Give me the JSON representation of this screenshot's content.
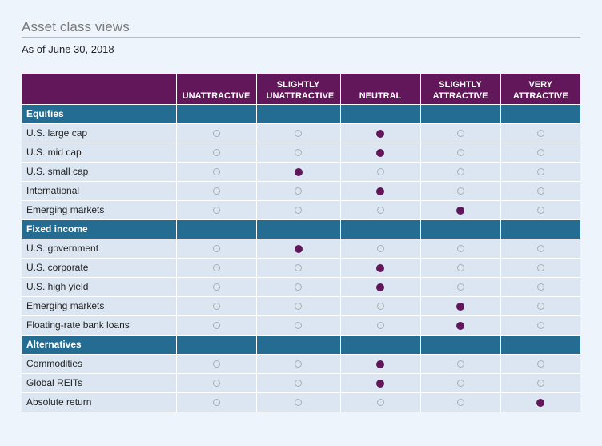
{
  "title": "Asset class views",
  "subtitle": "As of June 30, 2018",
  "columns": [
    "UNATTRACTIVE",
    "SLIGHTLY UNATTRACTIVE",
    "NEUTRAL",
    "SLIGHTLY ATTRACTIVE",
    "VERY ATTRACTIVE"
  ],
  "colors": {
    "header": "#62175a",
    "section": "#246c92",
    "row": "#dbe6f2",
    "dot_on": "#62175a"
  },
  "sections": [
    {
      "name": "Equities",
      "rows": [
        {
          "name": "U.S. large cap",
          "view": 2
        },
        {
          "name": "U.S. mid cap",
          "view": 2
        },
        {
          "name": "U.S. small cap",
          "view": 1
        },
        {
          "name": "International",
          "view": 2
        },
        {
          "name": "Emerging markets",
          "view": 3
        }
      ]
    },
    {
      "name": "Fixed income",
      "rows": [
        {
          "name": "U.S. government",
          "view": 1
        },
        {
          "name": "U.S. corporate",
          "view": 2
        },
        {
          "name": "U.S. high yield",
          "view": 2
        },
        {
          "name": "Emerging markets",
          "view": 3
        },
        {
          "name": "Floating-rate bank loans",
          "view": 3
        }
      ]
    },
    {
      "name": "Alternatives",
      "rows": [
        {
          "name": "Commodities",
          "view": 2
        },
        {
          "name": "Global REITs",
          "view": 2
        },
        {
          "name": "Absolute return",
          "view": 4
        }
      ]
    }
  ]
}
